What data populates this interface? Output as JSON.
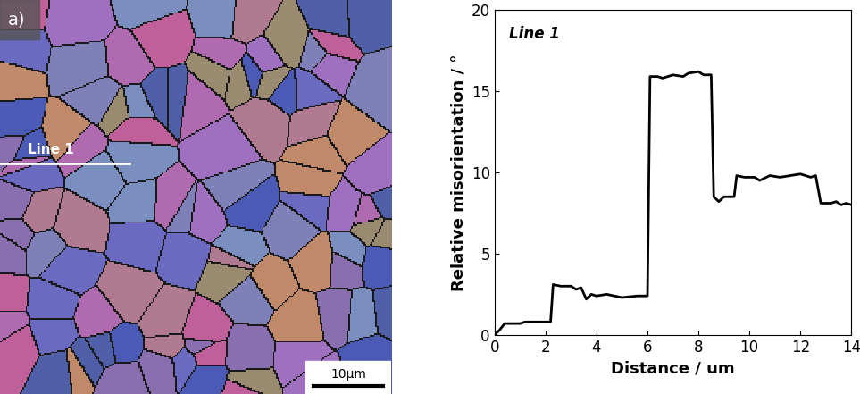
{
  "image": {
    "panel_label": "a)",
    "line_label": "Line 1",
    "scale_bar_label": "10μm"
  },
  "chart_data": {
    "type": "line",
    "annotations": [
      "Line 1"
    ],
    "x_label": "Distance / um",
    "y_label": "Relative misorientation / °",
    "x": [
      0,
      0.2,
      0.4,
      1.0,
      1.2,
      1.6,
      2.2,
      2.3,
      2.6,
      3.0,
      3.2,
      3.4,
      3.6,
      3.8,
      4.0,
      4.4,
      5.0,
      5.6,
      6.0,
      6.1,
      6.4,
      6.6,
      7.0,
      7.4,
      7.6,
      8.0,
      8.2,
      8.5,
      8.6,
      8.8,
      9.0,
      9.4,
      9.5,
      9.8,
      10.2,
      10.4,
      10.8,
      11.2,
      11.6,
      12.0,
      12.4,
      12.6,
      12.8,
      13.2,
      13.4,
      13.6,
      13.8,
      14.0
    ],
    "values": [
      0,
      0.3,
      0.7,
      0.7,
      0.8,
      0.8,
      0.8,
      3.1,
      3.0,
      3.0,
      2.8,
      2.9,
      2.2,
      2.5,
      2.4,
      2.5,
      2.3,
      2.4,
      2.4,
      15.9,
      15.9,
      15.8,
      16.0,
      15.9,
      16.1,
      16.2,
      16.0,
      16.0,
      8.5,
      8.2,
      8.5,
      8.5,
      9.8,
      9.7,
      9.7,
      9.5,
      9.8,
      9.7,
      9.8,
      9.9,
      9.7,
      9.8,
      8.1,
      8.1,
      8.2,
      8.0,
      8.1,
      8.0
    ],
    "color": "#000000",
    "xlim": [
      0,
      14
    ],
    "xticks": [
      0,
      2,
      4,
      6,
      8,
      10,
      12,
      14
    ],
    "ylim": [
      0,
      20
    ],
    "yticks": [
      0,
      5,
      10,
      15,
      20
    ],
    "grid": false
  }
}
